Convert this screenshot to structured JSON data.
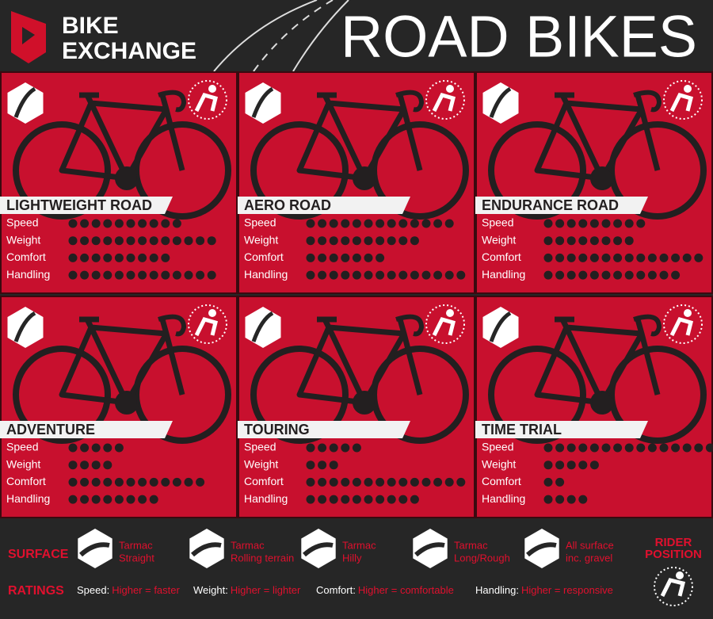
{
  "header": {
    "logo_line1": "BIKE",
    "logo_line2": "EXCHANGE",
    "title": "ROAD BIKES"
  },
  "rating_labels": [
    "Speed",
    "Weight",
    "Comfort",
    "Handling"
  ],
  "bikes": [
    {
      "name": "LIGHTWEIGHT ROAD",
      "ratings": [
        10,
        13,
        9,
        13
      ]
    },
    {
      "name": "AERO ROAD",
      "ratings": [
        13,
        10,
        7,
        14
      ]
    },
    {
      "name": "ENDURANCE ROAD",
      "ratings": [
        9,
        8,
        14,
        12
      ]
    },
    {
      "name": "ADVENTURE",
      "ratings": [
        5,
        4,
        12,
        8
      ]
    },
    {
      "name": "TOURING",
      "ratings": [
        5,
        3,
        14,
        10
      ]
    },
    {
      "name": "TIME TRIAL",
      "ratings": [
        15,
        5,
        2,
        4
      ]
    }
  ],
  "legend": {
    "surface_label": "SURFACE",
    "surfaces": [
      {
        "line1": "Tarmac",
        "line2": "Straight"
      },
      {
        "line1": "Tarmac",
        "line2": "Rolling terrain"
      },
      {
        "line1": "Tarmac",
        "line2": "Hilly"
      },
      {
        "line1": "Tarmac",
        "line2": "Long/Rough"
      },
      {
        "line1": "All surface",
        "line2": "inc. gravel"
      }
    ],
    "rider_position": [
      "RIDER",
      "POSITION"
    ],
    "ratings_label": "RATINGS",
    "ratings": [
      {
        "name": "Speed:",
        "meaning": "Higher = faster"
      },
      {
        "name": "Weight:",
        "meaning": "Higher = lighter"
      },
      {
        "name": "Comfort:",
        "meaning": "Higher = comfortable"
      },
      {
        "name": "Handling:",
        "meaning": "Higher = responsive"
      }
    ]
  }
}
